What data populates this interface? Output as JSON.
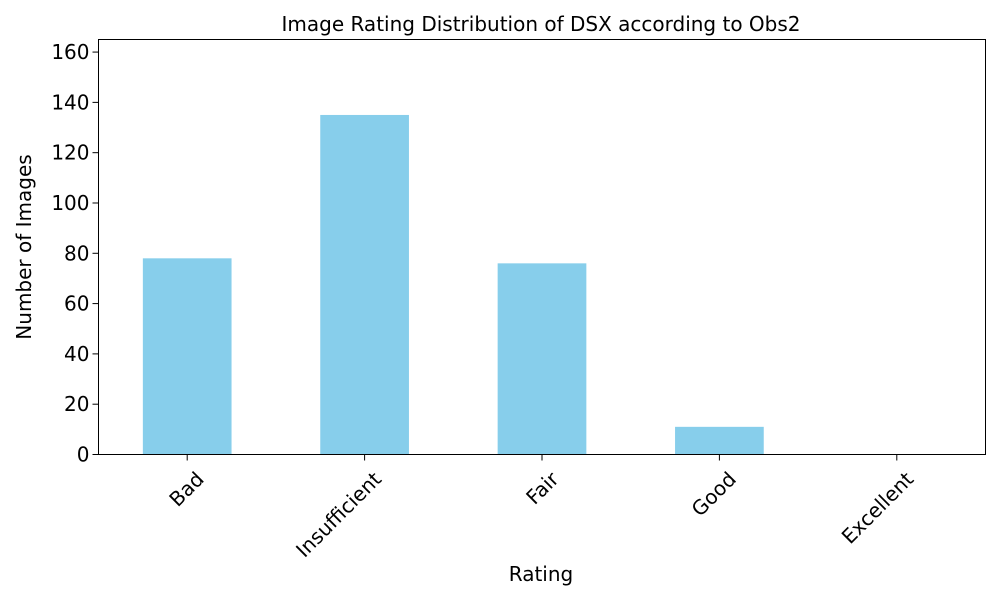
{
  "chart_data": {
    "type": "bar",
    "title": "Image Rating Distribution of DSX according to Obs2",
    "xlabel": "Rating",
    "ylabel": "Number of Images",
    "categories": [
      "Bad",
      "Insufficient",
      "Fair",
      "Good",
      "Excellent"
    ],
    "values": [
      78,
      135,
      76,
      11,
      0
    ],
    "ylim": [
      0,
      165
    ],
    "yticks": [
      0,
      20,
      40,
      60,
      80,
      100,
      120,
      140,
      160
    ],
    "bar_color": "#87ceeb",
    "grid": false,
    "x_tick_rotation": "45 degrees"
  }
}
